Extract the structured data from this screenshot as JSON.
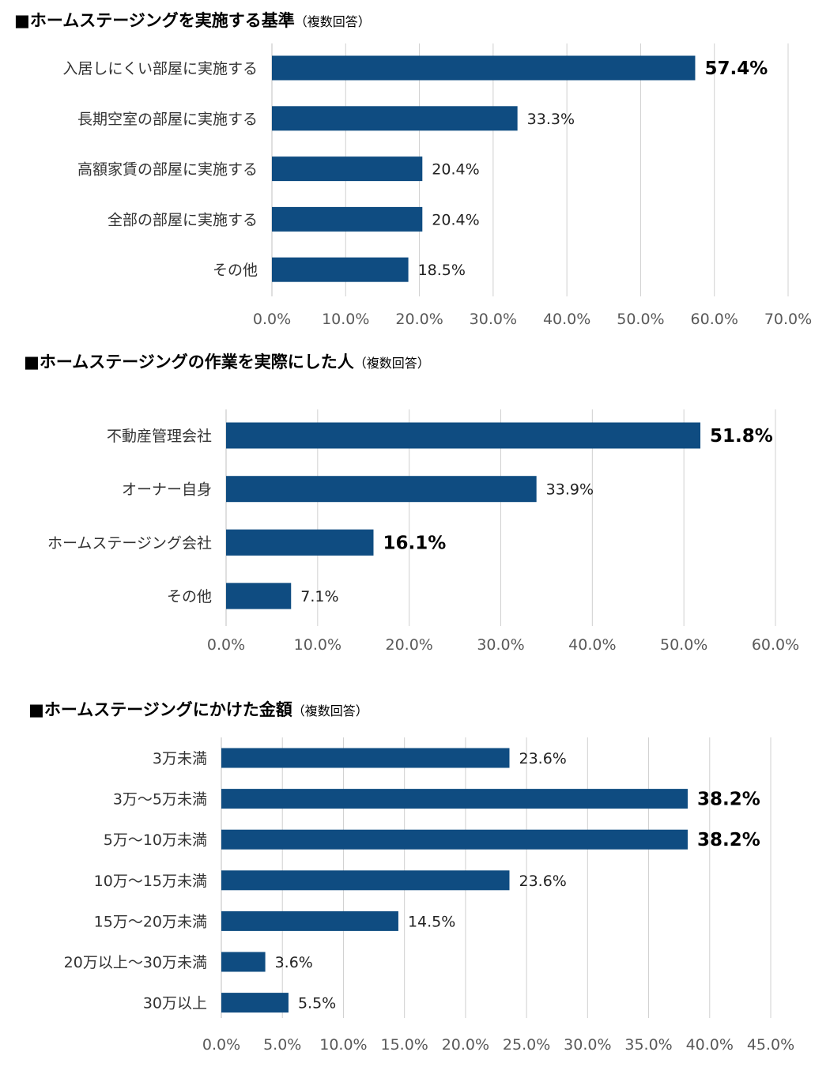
{
  "colors": {
    "bar": "#0f4c81",
    "grid": "#d0d0d0",
    "axis": "#bfbfbf"
  },
  "chart_data": [
    {
      "type": "bar",
      "orientation": "horizontal",
      "title": "■ホームステージングを実施する基準",
      "subtitle": "（複数回答）",
      "categories": [
        "入居しにくい部屋に実施する",
        "長期空室の部屋に実施する",
        "高額家賃の部屋に実施する",
        "全部の部屋に実施する",
        "その他"
      ],
      "values": [
        57.4,
        33.3,
        20.4,
        20.4,
        18.5
      ],
      "value_labels": [
        "57.4%",
        "33.3%",
        "20.4%",
        "20.4%",
        "18.5%"
      ],
      "highlighted": [
        true,
        false,
        false,
        false,
        false
      ],
      "xlim": [
        0,
        70
      ],
      "ticks": [
        "0.0%",
        "10.0%",
        "20.0%",
        "30.0%",
        "40.0%",
        "50.0%",
        "60.0%",
        "70.0%"
      ],
      "grid": true
    },
    {
      "type": "bar",
      "orientation": "horizontal",
      "title": "■ホームステージングの作業を実際にした人",
      "subtitle": "（複数回答）",
      "categories": [
        "不動産管理会社",
        "オーナー自身",
        "ホームステージング会社",
        "その他"
      ],
      "values": [
        51.8,
        33.9,
        16.1,
        7.1
      ],
      "value_labels": [
        "51.8%",
        "33.9%",
        "16.1%",
        "7.1%"
      ],
      "highlighted": [
        true,
        false,
        true,
        false
      ],
      "xlim": [
        0,
        60
      ],
      "ticks": [
        "0.0%",
        "10.0%",
        "20.0%",
        "30.0%",
        "40.0%",
        "50.0%",
        "60.0%"
      ],
      "grid": true
    },
    {
      "type": "bar",
      "orientation": "horizontal",
      "title": "■ホームステージングにかけた金額",
      "subtitle": "（複数回答）",
      "categories": [
        "3万未満",
        "3万～5万未満",
        "5万～10万未満",
        "10万～15万未満",
        "15万～20万未満",
        "20万以上～30万未満",
        "30万以上"
      ],
      "values": [
        23.6,
        38.2,
        38.2,
        23.6,
        14.5,
        3.6,
        5.5
      ],
      "value_labels": [
        "23.6%",
        "38.2%",
        "38.2%",
        "23.6%",
        "14.5%",
        "3.6%",
        "5.5%"
      ],
      "highlighted": [
        false,
        true,
        true,
        false,
        false,
        false,
        false
      ],
      "xlim": [
        0,
        45
      ],
      "ticks": [
        "0.0%",
        "5.0%",
        "10.0%",
        "15.0%",
        "20.0%",
        "25.0%",
        "30.0%",
        "35.0%",
        "40.0%",
        "45.0%"
      ],
      "grid": true
    }
  ]
}
